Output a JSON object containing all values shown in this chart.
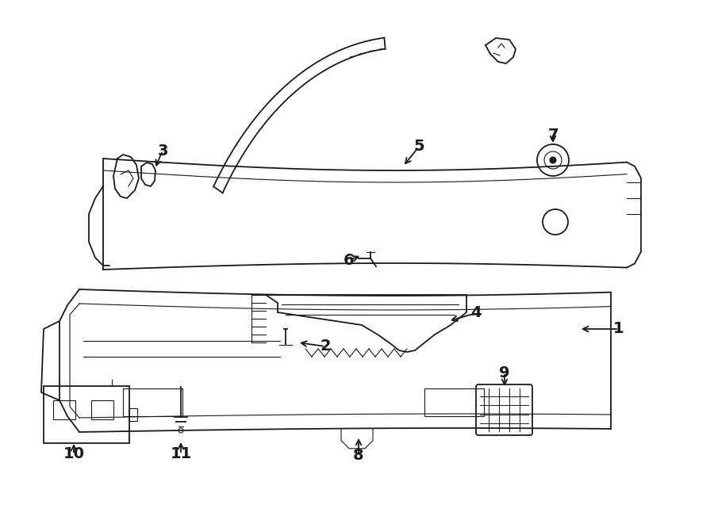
{
  "bg_color": "#ffffff",
  "line_color": "#1a1a1a",
  "fig_w": 9.0,
  "fig_h": 6.61,
  "dpi": 100
}
